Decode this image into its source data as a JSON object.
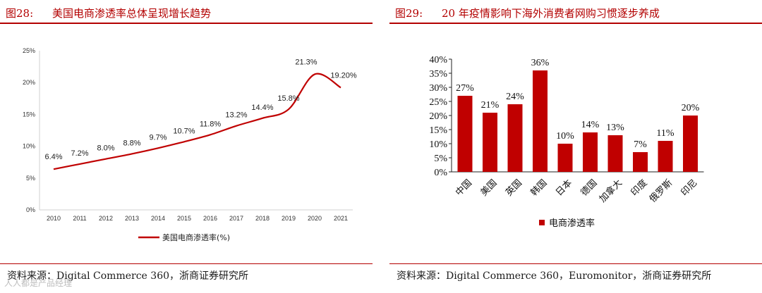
{
  "figures": [
    {
      "label": "图28:",
      "title": "美国电商渗透率总体呈现增长趋势",
      "source": "资料来源：Digital Commerce 360，浙商证券研究所",
      "chart_data": {
        "type": "line",
        "title": "美国电商渗透率总体呈现增长趋势",
        "x": [
          "2010",
          "2011",
          "2012",
          "2013",
          "2014",
          "2015",
          "2016",
          "2017",
          "2018",
          "2019",
          "2020",
          "2021"
        ],
        "series": [
          {
            "name": "美国电商渗透率(%)",
            "values": [
              6.4,
              7.2,
              8.0,
              8.8,
              9.7,
              10.7,
              11.8,
              13.2,
              14.4,
              15.8,
              21.3,
              19.2
            ],
            "labels": [
              "6.4%",
              "7.2%",
              "8.0%",
              "8.8%",
              "9.7%",
              "10.7%",
              "11.8%",
              "13.2%",
              "14.4%",
              "15.8%",
              "21.3%",
              "19.20%"
            ]
          }
        ],
        "yticks": [
          "0%",
          "5%",
          "10%",
          "15%",
          "20%",
          "25%"
        ],
        "ylim": [
          0,
          25
        ],
        "xlabel": "",
        "ylabel": "",
        "legend": "bottom",
        "color": "#c00000"
      }
    },
    {
      "label": "图29:",
      "title": "20 年疫情影响下海外消费者网购习惯逐步养成",
      "source": "资料来源：Digital Commerce 360，Euromonitor，浙商证券研究所",
      "chart_data": {
        "type": "bar",
        "title": "20 年疫情影响下海外消费者网购习惯逐步养成",
        "categories": [
          "中国",
          "美国",
          "英国",
          "韩国",
          "日本",
          "德国",
          "加拿大",
          "印度",
          "俄罗斯",
          "印尼"
        ],
        "series": [
          {
            "name": "电商渗透率",
            "values": [
              27,
              21,
              24,
              36,
              10,
              14,
              13,
              7,
              11,
              20
            ],
            "labels": [
              "27%",
              "21%",
              "24%",
              "36%",
              "10%",
              "14%",
              "13%",
              "7%",
              "11%",
              "20%"
            ]
          }
        ],
        "yticks": [
          "0%",
          "5%",
          "10%",
          "15%",
          "20%",
          "25%",
          "30%",
          "35%",
          "40%"
        ],
        "ylim": [
          0,
          40
        ],
        "xlabel": "",
        "ylabel": "",
        "legend": "bottom",
        "color": "#c00000"
      }
    }
  ],
  "watermark": "人人都是产品经理"
}
